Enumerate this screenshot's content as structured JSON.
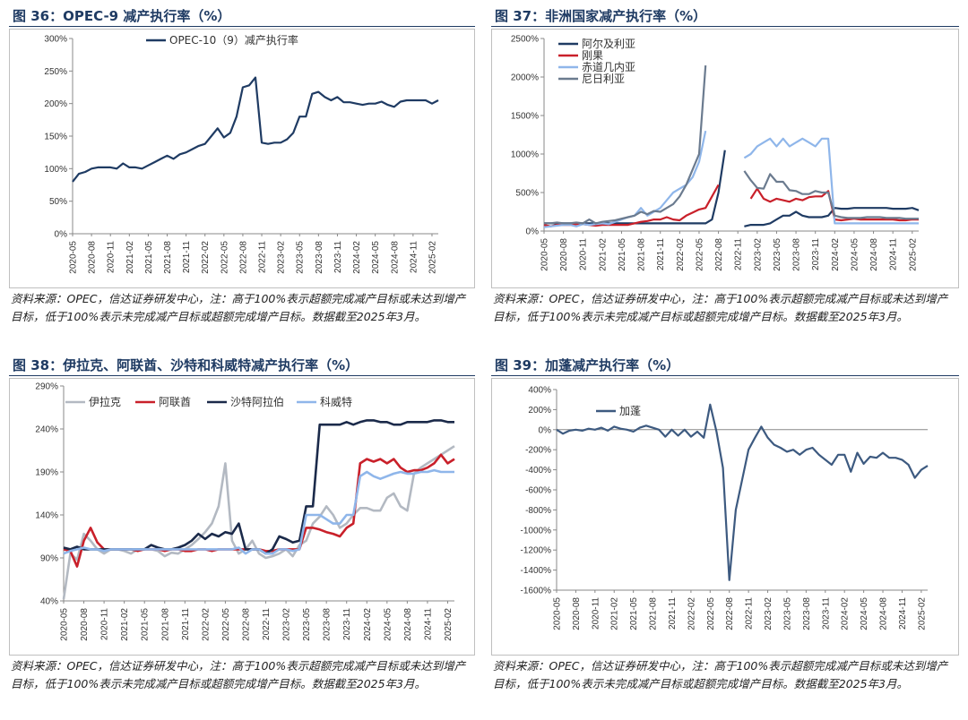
{
  "source_note": "资料来源：OPEC，信达证券研发中心，注：高于100%表示超额完成减产目标或未达到增产目标，低于100%表示未完成减产目标或超额完成增产目标。数据截至2025年3月。",
  "chart_data": [
    {
      "type": "line",
      "title": "图 36：OPEC-9 减产执行率（%）",
      "x_ticks": [
        "2020-05",
        "2020-08",
        "2020-11",
        "2021-02",
        "2021-05",
        "2021-08",
        "2021-11",
        "2022-02",
        "2022-05",
        "2022-08",
        "2022-11",
        "2023-02",
        "2023-05",
        "2023-08",
        "2023-11",
        "2024-02",
        "2024-05",
        "2024-08",
        "2024-11",
        "2025-02"
      ],
      "n": 59,
      "ylim": [
        0,
        300
      ],
      "yticks": [
        0,
        50,
        100,
        150,
        200,
        250,
        300
      ],
      "ytick_labels": [
        "0%",
        "50%",
        "100%",
        "150%",
        "200%",
        "250%",
        "300%"
      ],
      "legend": "top-center",
      "series": [
        {
          "name": "OPEC-10（9）减产执行率",
          "color": "#1f3b63",
          "values": [
            80,
            92,
            95,
            100,
            102,
            102,
            102,
            100,
            108,
            102,
            102,
            100,
            105,
            110,
            115,
            120,
            115,
            122,
            125,
            130,
            135,
            138,
            150,
            162,
            148,
            155,
            180,
            225,
            228,
            240,
            140,
            138,
            140,
            140,
            145,
            155,
            180,
            180,
            215,
            218,
            210,
            205,
            210,
            202,
            202,
            200,
            198,
            200,
            200,
            203,
            198,
            195,
            203,
            205,
            205,
            205,
            205,
            200,
            205
          ]
        }
      ]
    },
    {
      "type": "line",
      "title": "图 37：非洲国家减产执行率（%）",
      "x_ticks": [
        "2020-05",
        "2020-08",
        "2020-11",
        "2021-02",
        "2021-05",
        "2021-08",
        "2021-11",
        "2022-02",
        "2022-05",
        "2022-08",
        "2022-11",
        "2023-02",
        "2023-05",
        "2023-08",
        "2023-11",
        "2024-02",
        "2024-05",
        "2024-08",
        "2024-11",
        "2025-02"
      ],
      "n": 59,
      "ylim": [
        0,
        2500
      ],
      "yticks": [
        0,
        500,
        1000,
        1500,
        2000,
        2500
      ],
      "ytick_labels": [
        "0%",
        "500%",
        "1000%",
        "1500%",
        "2000%",
        "2500%"
      ],
      "legend": "top-left",
      "series": [
        {
          "name": "阿尔及利亚",
          "color": "#1f3b63",
          "values": [
            100,
            100,
            100,
            100,
            100,
            100,
            100,
            100,
            100,
            100,
            100,
            100,
            100,
            100,
            100,
            100,
            100,
            100,
            100,
            100,
            100,
            100,
            100,
            100,
            100,
            100,
            150,
            500,
            1050,
            null,
            null,
            60,
            80,
            80,
            80,
            100,
            150,
            200,
            200,
            250,
            200,
            180,
            180,
            180,
            200,
            300,
            290,
            290,
            300,
            300,
            300,
            300,
            300,
            300,
            290,
            290,
            290,
            300,
            270
          ]
        },
        {
          "name": "刚果",
          "color": "#c9202a",
          "values": [
            80,
            60,
            80,
            80,
            80,
            90,
            90,
            80,
            70,
            80,
            80,
            80,
            80,
            80,
            100,
            120,
            130,
            150,
            150,
            180,
            150,
            140,
            200,
            240,
            280,
            300,
            450,
            600,
            null,
            null,
            null,
            null,
            420,
            550,
            420,
            380,
            420,
            400,
            380,
            420,
            400,
            440,
            450,
            450,
            520,
            150,
            140,
            150,
            160,
            150,
            150,
            150,
            150,
            150,
            150,
            140,
            140,
            150,
            150
          ]
        },
        {
          "name": "赤道几内亚",
          "color": "#8fb6ea",
          "values": [
            50,
            60,
            70,
            80,
            80,
            60,
            90,
            80,
            90,
            100,
            90,
            120,
            150,
            180,
            200,
            300,
            200,
            250,
            300,
            400,
            500,
            550,
            600,
            700,
            900,
            1300,
            null,
            null,
            null,
            null,
            null,
            950,
            1000,
            1100,
            1150,
            1200,
            1100,
            1200,
            1100,
            1150,
            1200,
            1150,
            1100,
            1200,
            1200,
            100,
            100,
            100,
            100,
            100,
            100,
            100,
            100,
            100,
            100,
            100,
            100,
            100,
            100
          ]
        },
        {
          "name": "尼日利亚",
          "color": "#6b7b8f",
          "values": [
            100,
            100,
            110,
            100,
            100,
            110,
            100,
            150,
            100,
            120,
            130,
            140,
            160,
            180,
            200,
            250,
            220,
            260,
            250,
            300,
            350,
            450,
            600,
            800,
            1000,
            2150,
            null,
            null,
            null,
            null,
            null,
            780,
            660,
            560,
            550,
            740,
            640,
            640,
            530,
            520,
            480,
            480,
            520,
            500,
            500,
            200,
            180,
            170,
            170,
            170,
            180,
            180,
            180,
            170,
            170,
            170,
            160,
            160,
            160
          ]
        }
      ]
    },
    {
      "type": "line",
      "title": "图 38：伊拉克、阿联酋、沙特和科威特减产执行率（%）",
      "x_ticks": [
        "2020-05",
        "2020-08",
        "2020-11",
        "2021-02",
        "2021-05",
        "2021-08",
        "2021-11",
        "2022-02",
        "2022-05",
        "2022-08",
        "2022-11",
        "2023-02",
        "2023-05",
        "2023-08",
        "2023-11",
        "2024-02",
        "2024-05",
        "2024-08",
        "2024-11",
        "2025-02"
      ],
      "n": 59,
      "ylim": [
        40,
        290
      ],
      "yticks": [
        40,
        90,
        140,
        190,
        240,
        290
      ],
      "ytick_labels": [
        "40%",
        "90%",
        "140%",
        "190%",
        "240%",
        "290%"
      ],
      "legend": "top",
      "series": [
        {
          "name": "伊拉克",
          "color": "#b3b9c2",
          "values": [
            42,
            95,
            88,
            118,
            110,
            100,
            95,
            100,
            100,
            98,
            95,
            100,
            100,
            100,
            98,
            92,
            96,
            95,
            100,
            105,
            112,
            120,
            130,
            150,
            200,
            110,
            95,
            100,
            110,
            95,
            90,
            92,
            95,
            100,
            92,
            105,
            110,
            130,
            138,
            150,
            140,
            125,
            130,
            140,
            148,
            148,
            145,
            145,
            160,
            165,
            150,
            145,
            188,
            195,
            200,
            205,
            210,
            215,
            220
          ]
        },
        {
          "name": "阿联酋",
          "color": "#c9202a",
          "values": [
            100,
            98,
            80,
            110,
            125,
            108,
            100,
            100,
            100,
            100,
            100,
            98,
            100,
            100,
            100,
            98,
            100,
            100,
            98,
            98,
            100,
            100,
            98,
            100,
            100,
            100,
            100,
            100,
            100,
            100,
            98,
            98,
            100,
            100,
            100,
            100,
            125,
            125,
            123,
            120,
            118,
            115,
            125,
            130,
            200,
            205,
            202,
            205,
            200,
            205,
            195,
            190,
            192,
            192,
            195,
            200,
            210,
            200,
            205
          ]
        },
        {
          "name": "沙特阿拉伯",
          "color": "#1b2a4a",
          "values": [
            102,
            100,
            103,
            100,
            100,
            100,
            100,
            100,
            100,
            100,
            100,
            100,
            100,
            105,
            102,
            100,
            100,
            102,
            105,
            110,
            118,
            112,
            118,
            115,
            120,
            118,
            130,
            100,
            100,
            100,
            95,
            100,
            115,
            112,
            108,
            110,
            150,
            150,
            245,
            245,
            245,
            245,
            248,
            245,
            248,
            250,
            250,
            248,
            248,
            245,
            245,
            248,
            248,
            248,
            248,
            250,
            250,
            248,
            248
          ]
        },
        {
          "name": "科威特",
          "color": "#8fb6ea",
          "values": [
            95,
            98,
            100,
            102,
            100,
            100,
            98,
            100,
            100,
            100,
            100,
            100,
            100,
            100,
            100,
            100,
            100,
            100,
            100,
            100,
            100,
            100,
            100,
            100,
            100,
            100,
            102,
            95,
            100,
            100,
            95,
            95,
            100,
            100,
            98,
            100,
            140,
            140,
            140,
            135,
            130,
            130,
            140,
            140,
            185,
            190,
            185,
            182,
            185,
            188,
            190,
            188,
            188,
            190,
            190,
            192,
            190,
            190,
            190
          ]
        }
      ]
    },
    {
      "type": "line",
      "title": "图 39：加蓬减产执行率（%）",
      "x_ticks": [
        "2020-05",
        "2020-08",
        "2020-11",
        "2021-02",
        "2021-05",
        "2021-08",
        "2021-11",
        "2022-02",
        "2022-05",
        "2022-08",
        "2022-11",
        "2023-02",
        "2023-05",
        "2023-08",
        "2023-11",
        "2024-02",
        "2024-05",
        "2024-08",
        "2024-11",
        "2025-02"
      ],
      "n": 59,
      "ylim": [
        -1600,
        400
      ],
      "yticks": [
        -1600,
        -1400,
        -1200,
        -1000,
        -800,
        -600,
        -400,
        -200,
        0,
        200,
        400
      ],
      "ytick_labels": [
        "-1600%",
        "-1400%",
        "-1200%",
        "-1000%",
        "-800%",
        "-600%",
        "-400%",
        "-200%",
        "0%",
        "200%",
        "400%"
      ],
      "legend": "top-left",
      "series": [
        {
          "name": "加蓬",
          "color": "#3d5a80",
          "values": [
            0,
            -40,
            -10,
            0,
            -10,
            10,
            0,
            20,
            -10,
            30,
            10,
            0,
            -20,
            20,
            40,
            20,
            0,
            -70,
            0,
            -60,
            0,
            -70,
            -20,
            -80,
            250,
            -20,
            -380,
            -1500,
            -800,
            -500,
            -200,
            -80,
            30,
            -80,
            -150,
            -180,
            -220,
            -200,
            -250,
            -200,
            -180,
            -250,
            -300,
            -350,
            -250,
            -250,
            -420,
            -230,
            -340,
            -270,
            -280,
            -230,
            -280,
            -280,
            -300,
            -350,
            -480,
            -400,
            -360
          ]
        }
      ]
    }
  ]
}
